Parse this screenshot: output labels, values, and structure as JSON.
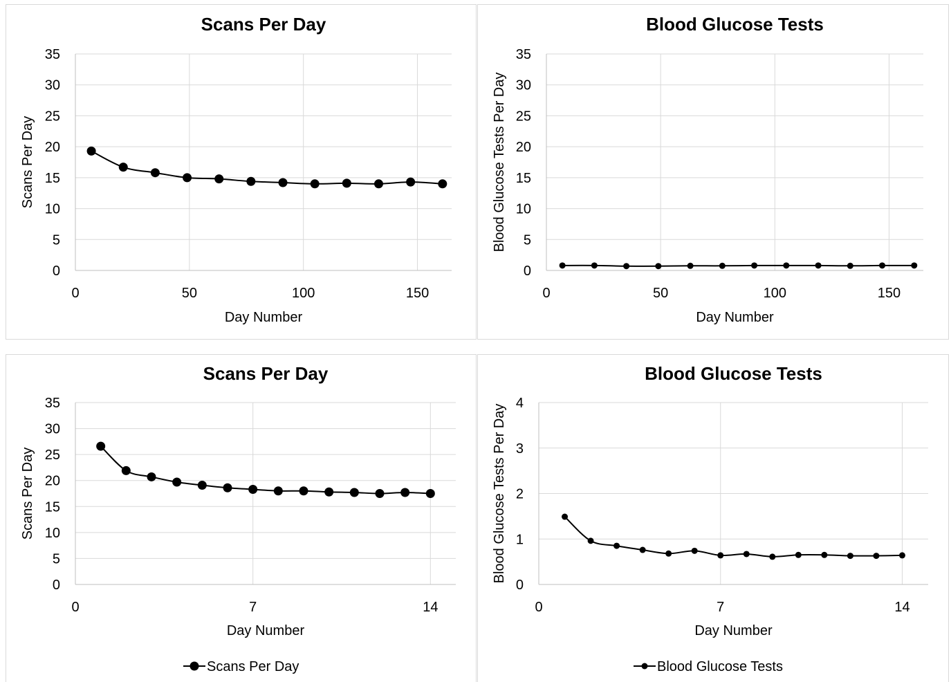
{
  "chart_data": [
    {
      "type": "line",
      "title": "Scans Per Day",
      "xlabel": "Day Number",
      "ylabel": "Scans Per Day",
      "xlim": [
        0,
        165
      ],
      "ylim": [
        0,
        35
      ],
      "xticks": [
        0,
        50,
        100,
        150
      ],
      "yticks": [
        0,
        5,
        10,
        15,
        20,
        25,
        30,
        35
      ],
      "grid": true,
      "legend": "none",
      "marker_size": "large",
      "series": [
        {
          "color": "#000000",
          "x": [
            7,
            21,
            35,
            49,
            63,
            77,
            91,
            105,
            119,
            133,
            147,
            161
          ],
          "values": [
            19.3,
            16.7,
            15.8,
            15.0,
            14.8,
            14.4,
            14.2,
            14.0,
            14.1,
            14.0,
            14.3,
            14.0
          ]
        }
      ]
    },
    {
      "type": "line",
      "title": "Blood Glucose Tests",
      "xlabel": "Day Number",
      "ylabel": "Blood Glucose Tests  Per Day",
      "xlim": [
        0,
        165
      ],
      "ylim": [
        0,
        35
      ],
      "xticks": [
        0,
        50,
        100,
        150
      ],
      "yticks": [
        0,
        5,
        10,
        15,
        20,
        25,
        30,
        35
      ],
      "grid": true,
      "legend": "none",
      "marker_size": "small",
      "series": [
        {
          "color": "#000000",
          "x": [
            7,
            21,
            35,
            49,
            63,
            77,
            91,
            105,
            119,
            133,
            147,
            161
          ],
          "values": [
            0.8,
            0.8,
            0.7,
            0.7,
            0.75,
            0.75,
            0.8,
            0.8,
            0.8,
            0.75,
            0.8,
            0.8
          ]
        }
      ]
    },
    {
      "type": "line",
      "title": "Scans Per Day",
      "xlabel": "Day Number",
      "ylabel": "Scans Per Day",
      "xlim": [
        0,
        15
      ],
      "ylim": [
        0,
        35
      ],
      "xticks": [
        0,
        7,
        14
      ],
      "yticks": [
        0,
        5,
        10,
        15,
        20,
        25,
        30,
        35
      ],
      "grid": true,
      "legend": "bottom",
      "marker_size": "large",
      "series": [
        {
          "name": "Scans Per Day",
          "color": "#000000",
          "x": [
            1,
            2,
            3,
            4,
            5,
            6,
            7,
            8,
            9,
            10,
            11,
            12,
            13,
            14
          ],
          "values": [
            26.6,
            21.9,
            20.7,
            19.7,
            19.1,
            18.6,
            18.3,
            18.0,
            18.0,
            17.8,
            17.7,
            17.5,
            17.7,
            17.5
          ]
        }
      ]
    },
    {
      "type": "line",
      "title": "Blood Glucose Tests",
      "xlabel": "Day Number",
      "ylabel": "Blood Glucose Tests  Per Day",
      "xlim": [
        0,
        15
      ],
      "ylim": [
        0,
        4
      ],
      "xticks": [
        0,
        7,
        14
      ],
      "yticks": [
        0,
        1,
        2,
        3,
        4
      ],
      "grid": true,
      "legend": "bottom",
      "marker_size": "small",
      "series": [
        {
          "name": "Blood Glucose Tests",
          "color": "#000000",
          "x": [
            1,
            2,
            3,
            4,
            5,
            6,
            7,
            8,
            9,
            10,
            11,
            12,
            13,
            14
          ],
          "values": [
            1.49,
            0.96,
            0.85,
            0.76,
            0.68,
            0.74,
            0.64,
            0.67,
            0.61,
            0.65,
            0.65,
            0.63,
            0.63,
            0.64
          ]
        }
      ]
    }
  ]
}
